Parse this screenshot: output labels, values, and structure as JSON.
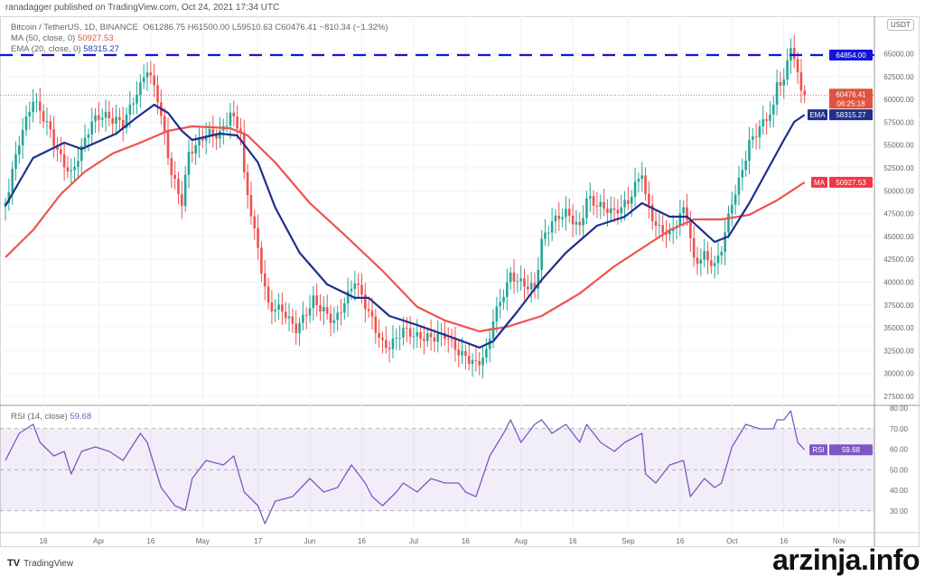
{
  "header": {
    "published": "ranadagger published on TradingView.com, Oct 24, 2021 17:34 UTC",
    "symbol": "Bitcoin / TetherUS, 1D, BINANCE",
    "ohlc": "O61286.75  H61500.00  L59510.63  C60476.41  −810.34 (−1.32%)",
    "ma_label": "MA (50, close, 0)",
    "ma_value": "50927.53",
    "ema_label": "EMA (20, close, 0)",
    "ema_value": "58315.27",
    "rsi_label": "RSI (14, close)",
    "rsi_value": "59.68",
    "currency": "USDT"
  },
  "footer": {
    "brand": "TradingView",
    "brand_icon": "tradingview-logo-icon"
  },
  "watermark": "arzinja.info",
  "colors": {
    "up": "#26a69a",
    "down": "#ef5350",
    "ema": "#1e2f8c",
    "ma": "#ef5350",
    "rsi": "#7e57c2",
    "resistance": "#1515d9"
  },
  "chart_data": {
    "type": "candlestick",
    "title": "Bitcoin / TetherUS, 1D, BINANCE",
    "x_unit": "days since Mar 5, 2021",
    "price_ticks": [
      65000,
      62500,
      60000,
      57500,
      55000,
      52500,
      50000,
      47500,
      45000,
      42500,
      40000,
      37500,
      35000,
      32500,
      30000,
      27500
    ],
    "ylim": [
      27000,
      67000
    ],
    "time_ticks": [
      {
        "day": 11,
        "label": "16"
      },
      {
        "day": 27,
        "label": "Apr"
      },
      {
        "day": 42,
        "label": "16"
      },
      {
        "day": 57,
        "label": "May"
      },
      {
        "day": 73,
        "label": "17"
      },
      {
        "day": 88,
        "label": "Jun"
      },
      {
        "day": 103,
        "label": "16"
      },
      {
        "day": 118,
        "label": "Jul"
      },
      {
        "day": 133,
        "label": "16"
      },
      {
        "day": 149,
        "label": "Aug"
      },
      {
        "day": 164,
        "label": "16"
      },
      {
        "day": 180,
        "label": "Sep"
      },
      {
        "day": 195,
        "label": "16"
      },
      {
        "day": 210,
        "label": "Oct"
      },
      {
        "day": 225,
        "label": "16"
      },
      {
        "day": 241,
        "label": "Nov"
      }
    ],
    "close_series": [
      [
        0,
        48650
      ],
      [
        4,
        55070
      ],
      [
        8,
        59520
      ],
      [
        12,
        57050
      ],
      [
        16,
        53590
      ],
      [
        19,
        52110
      ],
      [
        25,
        58040
      ],
      [
        28,
        58530
      ],
      [
        34,
        57050
      ],
      [
        39,
        61000
      ],
      [
        41,
        62980
      ],
      [
        44,
        60010
      ],
      [
        48,
        52110
      ],
      [
        51,
        49140
      ],
      [
        53,
        54580
      ],
      [
        58,
        56560
      ],
      [
        62,
        56060
      ],
      [
        65,
        58040
      ],
      [
        68,
        56060
      ],
      [
        69,
        51120
      ],
      [
        71,
        47170
      ],
      [
        74,
        41240
      ],
      [
        76,
        37290
      ],
      [
        80,
        37290
      ],
      [
        84,
        35310
      ],
      [
        89,
        38280
      ],
      [
        95,
        35310
      ],
      [
        98,
        37290
      ],
      [
        101,
        39760
      ],
      [
        104,
        37290
      ],
      [
        109,
        33340
      ],
      [
        111,
        33340
      ],
      [
        115,
        35310
      ],
      [
        119,
        34320
      ],
      [
        123,
        33830
      ],
      [
        127,
        33830
      ],
      [
        131,
        31830
      ],
      [
        136,
        30840
      ],
      [
        139,
        32330
      ],
      [
        141,
        36300
      ],
      [
        144,
        39260
      ],
      [
        146,
        41240
      ],
      [
        149,
        40250
      ],
      [
        153,
        39260
      ],
      [
        155,
        44210
      ],
      [
        158,
        46180
      ],
      [
        162,
        47170
      ],
      [
        166,
        45690
      ],
      [
        168,
        49140
      ],
      [
        172,
        48650
      ],
      [
        176,
        48160
      ],
      [
        180,
        49140
      ],
      [
        184,
        52110
      ],
      [
        185,
        49140
      ],
      [
        188,
        45690
      ],
      [
        192,
        44700
      ],
      [
        196,
        47660
      ],
      [
        197,
        47170
      ],
      [
        199,
        42230
      ],
      [
        202,
        43220
      ],
      [
        205,
        42230
      ],
      [
        207,
        44210
      ],
      [
        210,
        49140
      ],
      [
        212,
        51120
      ],
      [
        215,
        55070
      ],
      [
        219,
        57050
      ],
      [
        222,
        58530
      ],
      [
        223,
        61500
      ],
      [
        225,
        61500
      ],
      [
        227,
        65940
      ],
      [
        229,
        62480
      ],
      [
        231,
        60476.41
      ]
    ],
    "ema20": [
      [
        0,
        48350
      ],
      [
        8,
        53590
      ],
      [
        17,
        55270
      ],
      [
        22,
        54580
      ],
      [
        32,
        56260
      ],
      [
        38,
        58040
      ],
      [
        43,
        59420
      ],
      [
        47,
        58530
      ],
      [
        51,
        56560
      ],
      [
        54,
        55570
      ],
      [
        62,
        56260
      ],
      [
        67,
        56060
      ],
      [
        73,
        53100
      ],
      [
        78,
        48160
      ],
      [
        85,
        43220
      ],
      [
        93,
        39760
      ],
      [
        101,
        38280
      ],
      [
        105,
        38280
      ],
      [
        111,
        36300
      ],
      [
        119,
        35310
      ],
      [
        130,
        33830
      ],
      [
        137,
        32840
      ],
      [
        141,
        33530
      ],
      [
        148,
        36790
      ],
      [
        155,
        40250
      ],
      [
        162,
        43220
      ],
      [
        171,
        46180
      ],
      [
        179,
        47170
      ],
      [
        184,
        48650
      ],
      [
        192,
        47170
      ],
      [
        197,
        47170
      ],
      [
        205,
        44400
      ],
      [
        209,
        45000
      ],
      [
        215,
        48650
      ],
      [
        220,
        52110
      ],
      [
        225,
        55570
      ],
      [
        228,
        57540
      ],
      [
        231,
        58315.27
      ]
    ],
    "ma50": [
      [
        0,
        42720
      ],
      [
        8,
        45690
      ],
      [
        16,
        49640
      ],
      [
        23,
        52110
      ],
      [
        31,
        54080
      ],
      [
        39,
        55270
      ],
      [
        47,
        56560
      ],
      [
        54,
        57050
      ],
      [
        65,
        56850
      ],
      [
        70,
        56060
      ],
      [
        78,
        53100
      ],
      [
        88,
        48650
      ],
      [
        98,
        45190
      ],
      [
        109,
        41240
      ],
      [
        119,
        37290
      ],
      [
        127,
        35810
      ],
      [
        137,
        34620
      ],
      [
        145,
        35120
      ],
      [
        155,
        36300
      ],
      [
        166,
        38770
      ],
      [
        176,
        41730
      ],
      [
        184,
        43710
      ],
      [
        192,
        45690
      ],
      [
        199,
        46870
      ],
      [
        207,
        46870
      ],
      [
        215,
        47370
      ],
      [
        223,
        48950
      ],
      [
        231,
        50927.53
      ]
    ],
    "resistance": 64854.0,
    "last": {
      "close": "60476.41",
      "countdown": "06:25:18"
    },
    "tags": {
      "resistance": "64854.00",
      "ema_tag": "EMA",
      "ema_value": "58315.27",
      "ma_tag": "MA",
      "ma_value": "50927.53"
    },
    "rsi": {
      "ticks": [
        80,
        70,
        60,
        50,
        40,
        30
      ],
      "band": [
        30,
        70
      ],
      "mid": 50,
      "tag": "RSI",
      "value": "59.68",
      "series": [
        [
          0,
          54.5
        ],
        [
          4,
          67.7
        ],
        [
          8,
          72.1
        ],
        [
          10,
          63.3
        ],
        [
          14,
          56.7
        ],
        [
          17,
          58.9
        ],
        [
          19,
          47.9
        ],
        [
          22,
          58.9
        ],
        [
          26,
          61.1
        ],
        [
          30,
          58.9
        ],
        [
          34,
          54.5
        ],
        [
          39,
          67.7
        ],
        [
          41,
          63.3
        ],
        [
          45,
          41.3
        ],
        [
          49,
          32.5
        ],
        [
          52,
          30.3
        ],
        [
          54,
          45.7
        ],
        [
          58,
          54.5
        ],
        [
          63,
          52.3
        ],
        [
          66,
          56.7
        ],
        [
          69,
          39.1
        ],
        [
          73,
          32.5
        ],
        [
          75,
          23.7
        ],
        [
          78,
          34.7
        ],
        [
          83,
          36.9
        ],
        [
          88,
          45.7
        ],
        [
          92,
          39.1
        ],
        [
          96,
          41.3
        ],
        [
          100,
          52.3
        ],
        [
          104,
          43.5
        ],
        [
          106,
          36.9
        ],
        [
          109,
          32.5
        ],
        [
          113,
          39.1
        ],
        [
          115,
          43.5
        ],
        [
          119,
          39.1
        ],
        [
          123,
          45.7
        ],
        [
          127,
          43.5
        ],
        [
          131,
          43.5
        ],
        [
          133,
          39.1
        ],
        [
          136,
          36.9
        ],
        [
          140,
          56.7
        ],
        [
          144,
          67.7
        ],
        [
          146,
          74.3
        ],
        [
          149,
          63.3
        ],
        [
          153,
          72.1
        ],
        [
          155,
          74.3
        ],
        [
          158,
          67.7
        ],
        [
          162,
          72.1
        ],
        [
          166,
          63.3
        ],
        [
          168,
          72.1
        ],
        [
          172,
          63.3
        ],
        [
          176,
          58.9
        ],
        [
          179,
          63.3
        ],
        [
          184,
          67.7
        ],
        [
          185,
          47.9
        ],
        [
          188,
          43.5
        ],
        [
          192,
          52.3
        ],
        [
          196,
          54.5
        ],
        [
          198,
          36.9
        ],
        [
          202,
          45.7
        ],
        [
          205,
          41.3
        ],
        [
          207,
          43.5
        ],
        [
          210,
          61.1
        ],
        [
          214,
          72.1
        ],
        [
          218,
          69.9
        ],
        [
          222,
          69.9
        ],
        [
          223,
          74.3
        ],
        [
          225,
          74.3
        ],
        [
          227,
          78.7
        ],
        [
          229,
          63.3
        ],
        [
          231,
          59.68
        ]
      ]
    }
  }
}
